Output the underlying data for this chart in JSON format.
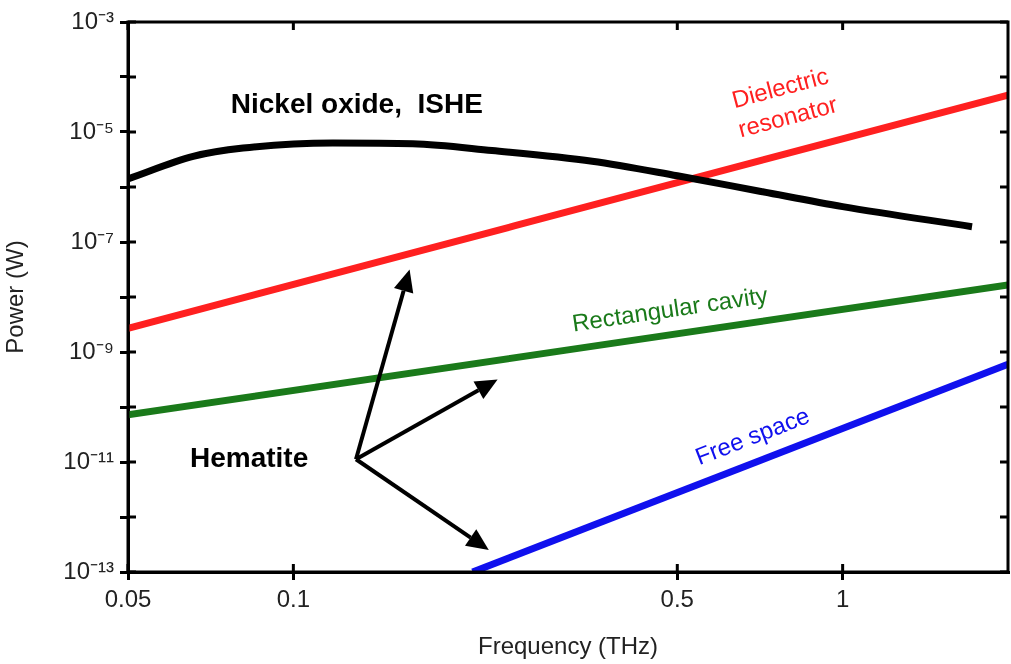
{
  "chart_data": {
    "type": "line",
    "xlabel": "Frequency (THz)",
    "ylabel": "Power (W)",
    "log": "xy",
    "grid": false,
    "legend": false,
    "marker": "none",
    "line_style": "solid",
    "xlim": [
      0.05,
      2
    ],
    "xticks": [
      0.05,
      0.1,
      0.5,
      1
    ],
    "ylim": [
      1e-13,
      0.001
    ],
    "yticks": [
      {
        "value": 1e-13,
        "label": "10⁻¹³"
      },
      {
        "value": 1e-12,
        "label": null
      },
      {
        "value": 1e-11,
        "label": "10⁻¹¹"
      },
      {
        "value": 1e-10,
        "label": null
      },
      {
        "value": 1e-09,
        "label": "10⁻⁹"
      },
      {
        "value": 1e-08,
        "label": null
      },
      {
        "value": 1e-07,
        "label": "10⁻⁷"
      },
      {
        "value": 1e-06,
        "label": null
      },
      {
        "value": 1e-05,
        "label": "10⁻⁵"
      },
      {
        "value": 0.0001,
        "label": null
      },
      {
        "value": 0.001,
        "label": "10⁻³"
      }
    ],
    "series": [
      {
        "name": "Nickel oxide,  ISHE",
        "color": "#000000",
        "x": [
          0.05,
          0.0657,
          0.081,
          0.118,
          0.165,
          0.23,
          0.35,
          0.5,
          0.71,
          1,
          1.72
        ],
        "values": [
          1.4e-06,
          3.6e-06,
          5.1e-06,
          6.3e-06,
          6.1e-06,
          4.6e-06,
          2.95e-06,
          1.6e-06,
          8.3e-07,
          4.4e-07,
          1.9e-07
        ]
      },
      {
        "name": "Dielectric resonator",
        "color": "#ff2020",
        "x": [
          0.05,
          2
        ],
        "values": [
          2.7e-09,
          4.7e-05
        ]
      },
      {
        "name": "Rectangular cavity",
        "color": "#1a7a1a",
        "x": [
          0.05,
          2
        ],
        "values": [
          7.2e-11,
          1.66e-08
        ]
      },
      {
        "name": "Free space",
        "color": "#1010ee",
        "x": [
          0.212,
          2
        ],
        "values": [
          1e-13,
          6e-10
        ]
      }
    ],
    "annotations": [
      "Hematite"
    ]
  }
}
